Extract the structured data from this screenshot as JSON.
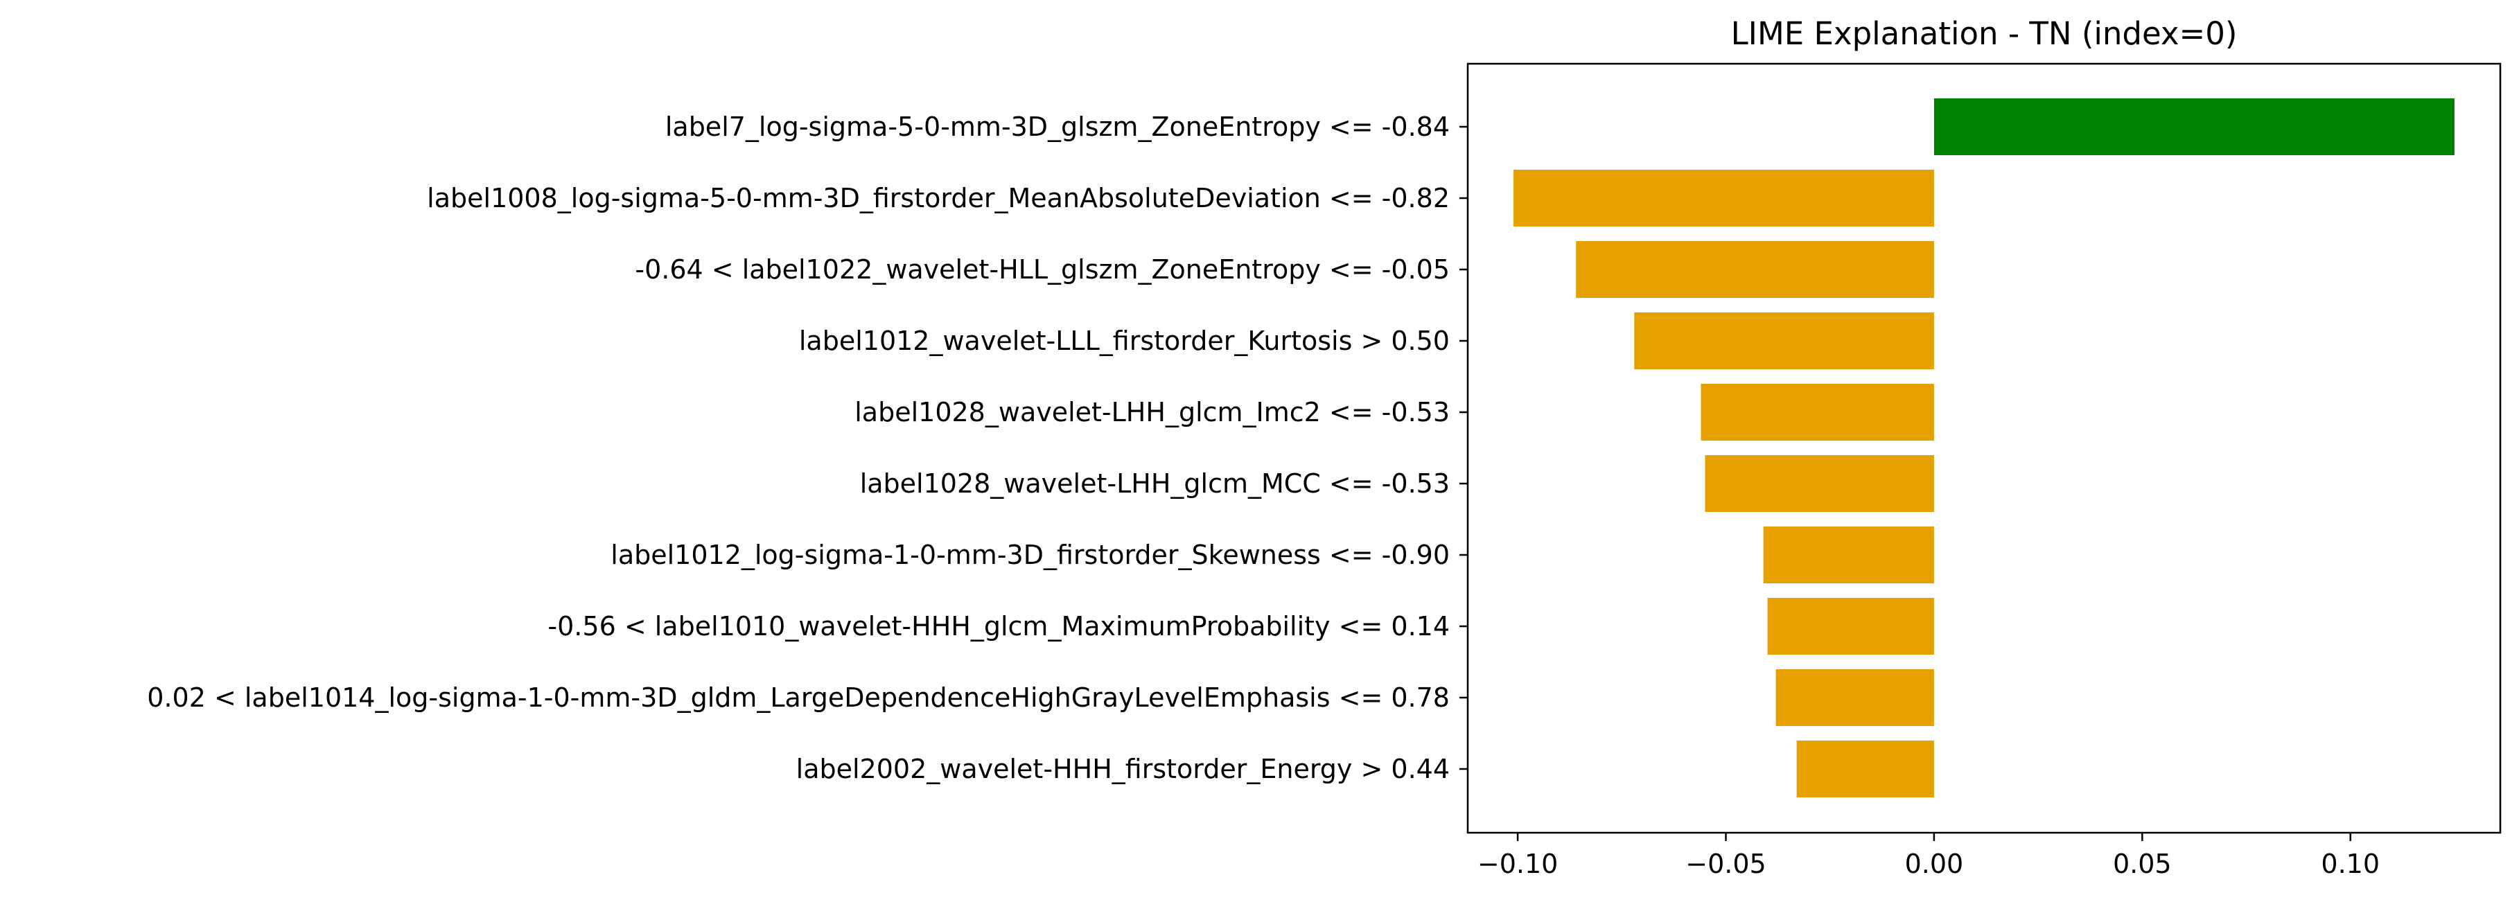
{
  "chart_data": {
    "type": "bar",
    "orientation": "horizontal",
    "title": "LIME Explanation - TN (index=0)",
    "xlabel": "",
    "ylabel": "",
    "xlim": [
      -0.112,
      0.136
    ],
    "x_ticks": [
      -0.1,
      -0.05,
      0.0,
      0.05,
      0.1
    ],
    "x_tick_labels": [
      "−0.10",
      "−0.05",
      "0.00",
      "0.05",
      "0.10"
    ],
    "grid": false,
    "positive_color": "#008000",
    "negative_color": "#e6a000",
    "categories": [
      "label7_log-sigma-5-0-mm-3D_glszm_ZoneEntropy <= -0.84",
      "label1008_log-sigma-5-0-mm-3D_firstorder_MeanAbsoluteDeviation <= -0.82",
      "-0.64 < label1022_wavelet-HLL_glszm_ZoneEntropy <= -0.05",
      "label1012_wavelet-LLL_firstorder_Kurtosis > 0.50",
      "label1028_wavelet-LHH_glcm_Imc2 <= -0.53",
      "label1028_wavelet-LHH_glcm_MCC <= -0.53",
      "label1012_log-sigma-1-0-mm-3D_firstorder_Skewness <= -0.90",
      "-0.56 < label1010_wavelet-HHH_glcm_MaximumProbability <= 0.14",
      "0.02 < label1014_log-sigma-1-0-mm-3D_gldm_LargeDependenceHighGrayLevelEmphasis <= 0.78",
      "label2002_wavelet-HHH_firstorder_Energy > 0.44"
    ],
    "values": [
      0.125,
      -0.101,
      -0.086,
      -0.072,
      -0.056,
      -0.055,
      -0.041,
      -0.04,
      -0.038,
      -0.033
    ]
  }
}
